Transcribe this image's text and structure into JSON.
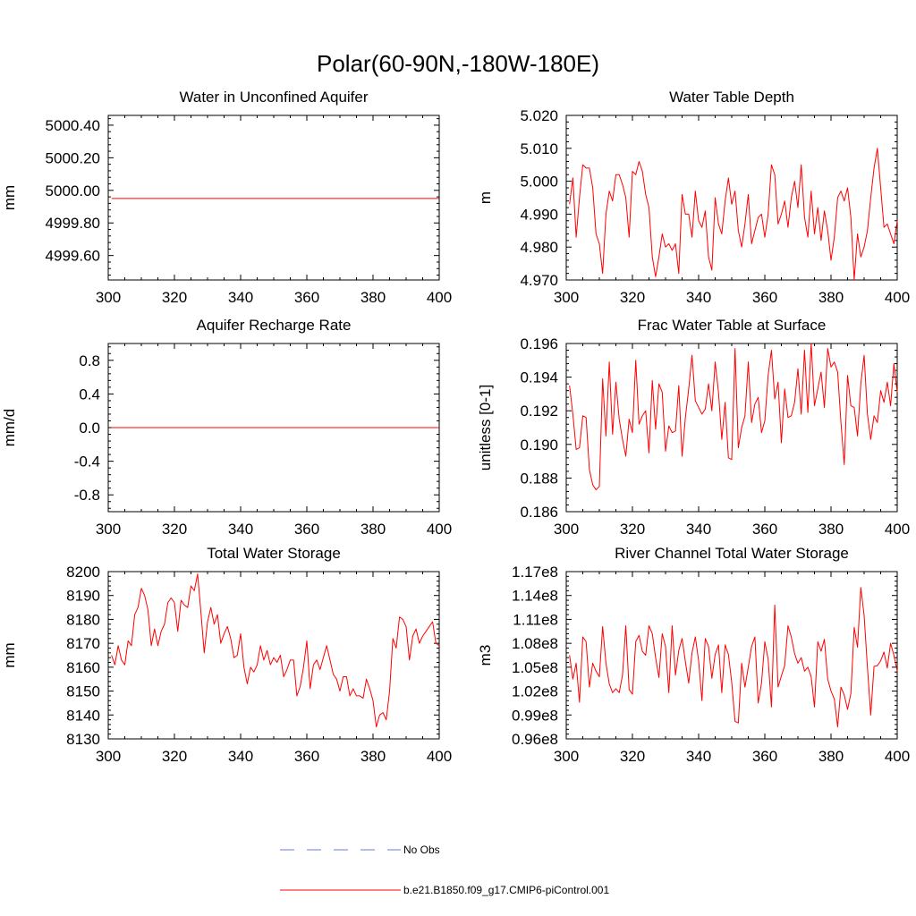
{
  "figure_title": "Polar(60-90N,-180W-180E)",
  "legend": [
    {
      "label": "No Obs",
      "color": "#6a7ed6",
      "style": "dashed"
    },
    {
      "label": "b.e21.B1850.f09_g17.CMIP6-piControl.001",
      "color": "#ff0000",
      "style": "solid"
    }
  ],
  "chart_data": [
    {
      "id": "p1",
      "type": "line",
      "title": "Water in Unconfined Aquifer",
      "xlabel": "",
      "ylabel": "mm",
      "xlim": [
        300,
        400
      ],
      "ylim": [
        4999.45,
        5000.46
      ],
      "xticks": [
        300,
        320,
        340,
        360,
        380,
        400
      ],
      "xtick_labels": [
        "300",
        "320",
        "340",
        "360",
        "380",
        "400"
      ],
      "yticks": [
        4999.6,
        4999.8,
        5000.0,
        5000.2,
        5000.4
      ],
      "ytick_labels": [
        "4999.60",
        "4999.80",
        "5000.00",
        "5000.20",
        "5000.40"
      ],
      "x": [
        301,
        400
      ],
      "series": [
        {
          "name": "b.e21.B1850.f09_g17.CMIP6-piControl.001",
          "color": "#ff0000",
          "values": [
            4999.95,
            4999.95
          ]
        }
      ]
    },
    {
      "id": "p2",
      "type": "line",
      "title": "Water Table Depth",
      "xlabel": "",
      "ylabel": "m",
      "xlim": [
        300,
        400
      ],
      "ylim": [
        4.97,
        5.02
      ],
      "xticks": [
        300,
        320,
        340,
        360,
        380,
        400
      ],
      "xtick_labels": [
        "300",
        "320",
        "340",
        "360",
        "380",
        "400"
      ],
      "yticks": [
        4.97,
        4.98,
        4.99,
        5.0,
        5.01,
        5.02
      ],
      "ytick_labels": [
        "4.970",
        "4.980",
        "4.990",
        "5.000",
        "5.010",
        "5.020"
      ],
      "x_start": 301,
      "series": [
        {
          "name": "b.e21.B1850.f09_g17.CMIP6-piControl.001",
          "color": "#ff0000",
          "values": [
            4.993,
            5.001,
            4.983,
            4.995,
            5.005,
            5.004,
            5.004,
            4.998,
            4.984,
            4.981,
            4.972,
            4.99,
            4.997,
            4.994,
            5.002,
            5.002,
            4.999,
            4.995,
            4.983,
            5.003,
            5.002,
            5.006,
            5.003,
            4.996,
            4.992,
            4.977,
            4.971,
            4.977,
            4.984,
            4.98,
            4.981,
            4.979,
            4.981,
            4.972,
            4.996,
            4.99,
            4.99,
            4.983,
            4.997,
            4.988,
            4.986,
            4.991,
            4.977,
            4.973,
            4.995,
            4.987,
            4.984,
            4.994,
            5.001,
            4.993,
            4.997,
            4.985,
            4.98,
            4.987,
            4.996,
            4.981,
            4.985,
            4.989,
            4.99,
            4.983,
            4.99,
            5.005,
            5.002,
            4.987,
            4.99,
            4.994,
            4.986,
            4.995,
            5.0,
            4.992,
            5.005,
            4.989,
            4.983,
            4.997,
            4.984,
            4.992,
            4.982,
            4.991,
            4.985,
            4.976,
            4.983,
            4.995,
            4.997,
            4.994,
            4.998,
            4.989,
            4.97,
            4.984,
            4.977,
            4.98,
            4.985,
            4.995,
            5.004,
            5.01,
            4.998,
            4.986,
            4.987,
            4.984,
            4.981,
            4.988
          ]
        }
      ]
    },
    {
      "id": "p3",
      "type": "line",
      "title": "Aquifer Recharge Rate",
      "xlabel": "",
      "ylabel": "mm/d",
      "xlim": [
        300,
        400
      ],
      "ylim": [
        -1.0,
        1.0
      ],
      "xticks": [
        300,
        320,
        340,
        360,
        380,
        400
      ],
      "xtick_labels": [
        "300",
        "320",
        "340",
        "360",
        "380",
        "400"
      ],
      "yticks": [
        -0.8,
        -0.4,
        0.0,
        0.4,
        0.8
      ],
      "ytick_labels": [
        "-0.8",
        "-0.4",
        "0.0",
        "0.4",
        "0.8"
      ],
      "x": [
        301,
        400
      ],
      "series": [
        {
          "name": "b.e21.B1850.f09_g17.CMIP6-piControl.001",
          "color": "#ff0000",
          "values": [
            0.0,
            0.0
          ]
        }
      ]
    },
    {
      "id": "p4",
      "type": "line",
      "title": "Frac Water Table at Surface",
      "xlabel": "",
      "ylabel": "unitless [0-1]",
      "xlim": [
        300,
        400
      ],
      "ylim": [
        0.186,
        0.196
      ],
      "xticks": [
        300,
        320,
        340,
        360,
        380,
        400
      ],
      "xtick_labels": [
        "300",
        "320",
        "340",
        "360",
        "380",
        "400"
      ],
      "yticks": [
        0.186,
        0.188,
        0.19,
        0.192,
        0.194,
        0.196
      ],
      "ytick_labels": [
        "0.186",
        "0.188",
        "0.190",
        "0.192",
        "0.194",
        "0.196"
      ],
      "x_start": 301,
      "series": [
        {
          "name": "b.e21.B1850.f09_g17.CMIP6-piControl.001",
          "color": "#ff0000",
          "values": [
            0.1935,
            0.1918,
            0.1897,
            0.1898,
            0.1917,
            0.1916,
            0.1885,
            0.1876,
            0.1873,
            0.1875,
            0.1939,
            0.1905,
            0.1949,
            0.1906,
            0.1937,
            0.1915,
            0.1903,
            0.1893,
            0.1915,
            0.1907,
            0.195,
            0.1912,
            0.1917,
            0.192,
            0.1895,
            0.1938,
            0.1909,
            0.1936,
            0.1931,
            0.1896,
            0.1911,
            0.1907,
            0.1908,
            0.1935,
            0.1893,
            0.1916,
            0.1933,
            0.1953,
            0.1926,
            0.1922,
            0.1918,
            0.1921,
            0.1936,
            0.192,
            0.1949,
            0.1931,
            0.1903,
            0.1925,
            0.1892,
            0.1891,
            0.1957,
            0.1898,
            0.191,
            0.1917,
            0.1949,
            0.1913,
            0.1924,
            0.1928,
            0.1907,
            0.1914,
            0.1941,
            0.1956,
            0.1927,
            0.1937,
            0.1901,
            0.1933,
            0.1916,
            0.1917,
            0.1925,
            0.1945,
            0.1918,
            0.1956,
            0.1919,
            0.196,
            0.1923,
            0.1933,
            0.1943,
            0.1922,
            0.1957,
            0.1946,
            0.1949,
            0.1943,
            0.1913,
            0.1888,
            0.1941,
            0.1923,
            0.1922,
            0.1905,
            0.1936,
            0.1953,
            0.1918,
            0.1903,
            0.1917,
            0.1913,
            0.1932,
            0.1925,
            0.1937,
            0.1923,
            0.1948,
            0.1931
          ]
        }
      ]
    },
    {
      "id": "p5",
      "type": "line",
      "title": "Total Water Storage",
      "xlabel": "",
      "ylabel": "mm",
      "xlim": [
        300,
        400
      ],
      "ylim": [
        8130,
        8200
      ],
      "xticks": [
        300,
        320,
        340,
        360,
        380,
        400
      ],
      "xtick_labels": [
        "300",
        "320",
        "340",
        "360",
        "380",
        "400"
      ],
      "yticks": [
        8130,
        8140,
        8150,
        8160,
        8170,
        8180,
        8190,
        8200
      ],
      "ytick_labels": [
        "8130",
        "8140",
        "8150",
        "8160",
        "8170",
        "8180",
        "8190",
        "8200"
      ],
      "x_start": 301,
      "series": [
        {
          "name": "b.e21.B1850.f09_g17.CMIP6-piControl.001",
          "color": "#ff0000",
          "values": [
            8165,
            8161,
            8169,
            8163,
            8161,
            8171,
            8169,
            8182,
            8185,
            8193,
            8190,
            8184,
            8169,
            8176,
            8169,
            8175,
            8178,
            8187,
            8189,
            8187,
            8175,
            8188,
            8186,
            8185,
            8194,
            8192,
            8199,
            8183,
            8166,
            8179,
            8185,
            8178,
            8182,
            8170,
            8174,
            8177,
            8172,
            8164,
            8165,
            8174,
            8160,
            8153,
            8160,
            8158,
            8161,
            8169,
            8163,
            8167,
            8161,
            8164,
            8162,
            8165,
            8156,
            8159,
            8163,
            8163,
            8148,
            8152,
            8160,
            8171,
            8151,
            8161,
            8163,
            8159,
            8164,
            8169,
            8163,
            8157,
            8155,
            8150,
            8156,
            8156,
            8148,
            8151,
            8148,
            8148,
            8147,
            8155,
            8151,
            8146,
            8135,
            8140,
            8141,
            8138,
            8150,
            8172,
            8168,
            8181,
            8180,
            8177,
            8163,
            8173,
            8176,
            8170,
            8173,
            8175,
            8177,
            8179,
            8170,
            8169
          ]
        }
      ]
    },
    {
      "id": "p6",
      "type": "line",
      "title": "River Channel Total Water Storage",
      "xlabel": "",
      "ylabel": "m3",
      "xlim": [
        300,
        400
      ],
      "ylim": [
        0.96,
        1.17
      ],
      "y_scale_note": "values in units of 1e8",
      "xticks": [
        300,
        320,
        340,
        360,
        380,
        400
      ],
      "xtick_labels": [
        "300",
        "320",
        "340",
        "360",
        "380",
        "400"
      ],
      "yticks": [
        0.96,
        0.99,
        1.02,
        1.05,
        1.08,
        1.11,
        1.14,
        1.17
      ],
      "ytick_labels": [
        "0.96e8",
        "0.99e8",
        "1.02e8",
        "1.05e8",
        "1.08e8",
        "1.11e8",
        "1.14e8",
        "1.17e8"
      ],
      "x_start": 301,
      "series": [
        {
          "name": "b.e21.B1850.f09_g17.CMIP6-piControl.001",
          "color": "#ff0000",
          "values": [
            1.065,
            1.035,
            1.055,
            1.006,
            1.088,
            1.082,
            1.025,
            1.055,
            1.045,
            1.038,
            1.101,
            1.055,
            1.029,
            1.018,
            1.023,
            1.018,
            1.04,
            1.102,
            1.022,
            1.016,
            1.082,
            1.09,
            1.07,
            1.065,
            1.102,
            1.092,
            1.062,
            1.037,
            1.092,
            1.076,
            1.018,
            1.102,
            1.04,
            1.071,
            1.086,
            1.057,
            1.03,
            1.068,
            1.088,
            1.058,
            1.008,
            1.086,
            1.076,
            1.036,
            1.066,
            1.078,
            1.018,
            1.078,
            1.066,
            1.031,
            0.982,
            0.98,
            1.055,
            1.025,
            1.05,
            1.076,
            1.088,
            1.005,
            1.03,
            1.082,
            1.06,
            1.0,
            1.128,
            1.025,
            1.039,
            1.052,
            1.102,
            1.088,
            1.067,
            1.055,
            1.062,
            1.045,
            1.05,
            1.038,
            1.0,
            1.082,
            1.07,
            1.085,
            1.035,
            1.02,
            1.01,
            0.975,
            1.025,
            1.015,
            0.997,
            1.017,
            1.1,
            1.075,
            1.15,
            1.115,
            1.05,
            0.99,
            1.051,
            1.052,
            1.058,
            1.069,
            1.049,
            1.08,
            1.065,
            1.045
          ]
        }
      ]
    }
  ]
}
